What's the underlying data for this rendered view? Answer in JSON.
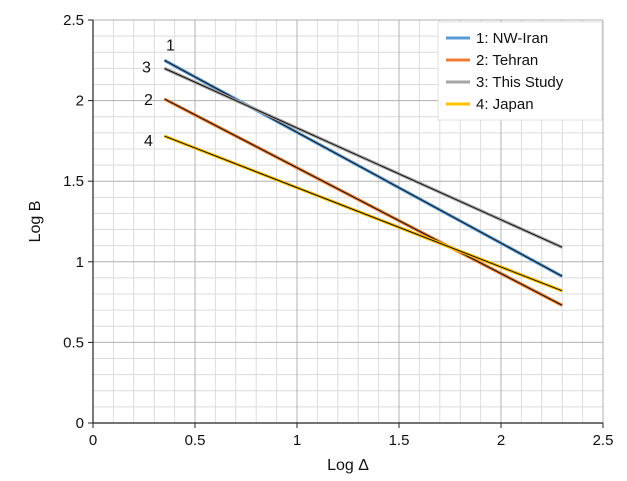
{
  "chart_data": {
    "type": "line",
    "xlabel": "Log Δ",
    "ylabel": "Log B",
    "xlim": [
      0,
      2.5
    ],
    "ylim": [
      0,
      2.5
    ],
    "xticks": [
      "0",
      "0.5",
      "1",
      "1.5",
      "2",
      "2.5"
    ],
    "yticks": [
      "0",
      "0.5",
      "1",
      "1.5",
      "2",
      "2.5"
    ],
    "grid": true,
    "minor_grid": true,
    "legend_position": "top-right",
    "series": [
      {
        "name": "1: NW-Iran",
        "line_label": "1",
        "color": "#5b9bd5",
        "x": [
          0.35,
          2.3
        ],
        "y": [
          2.25,
          0.91
        ]
      },
      {
        "name": "2: Tehran",
        "line_label": "2",
        "color": "#ed7d31",
        "x": [
          0.35,
          2.3
        ],
        "y": [
          2.01,
          0.73
        ]
      },
      {
        "name": "3: This Study",
        "line_label": "3",
        "color": "#a5a5a5",
        "x": [
          0.35,
          2.3
        ],
        "y": [
          2.2,
          1.09
        ]
      },
      {
        "name": "4: Japan",
        "line_label": "4",
        "color": "#ffc000",
        "x": [
          0.35,
          2.3
        ],
        "y": [
          1.78,
          0.82
        ]
      }
    ]
  }
}
